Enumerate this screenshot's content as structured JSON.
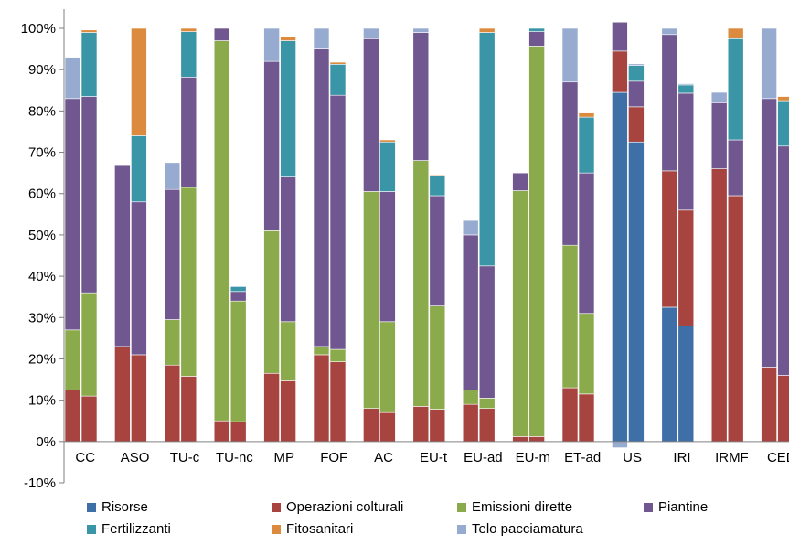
{
  "chart_data": {
    "type": "bar",
    "stacked": true,
    "ylim": [
      -0.1,
      1.0
    ],
    "yticks": [
      "-10%",
      "0%",
      "10%",
      "20%",
      "30%",
      "40%",
      "50%",
      "60%",
      "70%",
      "80%",
      "90%",
      "100%"
    ],
    "grid": false,
    "legend_position": "bottom",
    "categories": [
      "CC",
      "ASO",
      "TU-c",
      "TU-nc",
      "MP",
      "FOF",
      "AC",
      "EU-t",
      "EU-ad",
      "EU-m",
      "ET-ad",
      "US",
      "IRI",
      "IRMF",
      "CED"
    ],
    "series_order": [
      "Risorse",
      "Operazioni colturali",
      "Emissioni dirette",
      "Piantine",
      "Fertilizzanti",
      "Fitosanitari",
      "Telo pacciamatura"
    ],
    "colors": {
      "Risorse": "#3E6FA6",
      "Operazioni colturali": "#A84440",
      "Emissioni dirette": "#8AAA4B",
      "Piantine": "#70578F",
      "Fertilizzanti": "#3A95A6",
      "Fitosanitari": "#DC8A3E",
      "Telo pacciamatura": "#97AACF"
    },
    "groups": [
      {
        "category": "CC",
        "bars": [
          {
            "Risorse": 0,
            "Operazioni colturali": 12.5,
            "Emissioni dirette": 14.5,
            "Piantine": 56,
            "Fertilizzanti": 0,
            "Fitosanitari": 0,
            "Telo pacciamatura": 10
          },
          {
            "Risorse": 0,
            "Operazioni colturali": 11,
            "Emissioni dirette": 25,
            "Piantine": 47.5,
            "Fertilizzanti": 15.5,
            "Fitosanitari": 0.6,
            "Telo pacciamatura": 0
          }
        ]
      },
      {
        "category": "ASO",
        "bars": [
          {
            "Risorse": 0,
            "Operazioni colturali": 23,
            "Emissioni dirette": 0,
            "Piantine": 44,
            "Fertilizzanti": 0,
            "Fitosanitari": 0,
            "Telo pacciamatura": 0
          },
          {
            "Risorse": 0,
            "Operazioni colturali": 21,
            "Emissioni dirette": 0,
            "Piantine": 37,
            "Fertilizzanti": 16,
            "Fitosanitari": 26,
            "Telo pacciamatura": 0
          }
        ]
      },
      {
        "category": "TU-c",
        "bars": [
          {
            "Risorse": 0,
            "Operazioni colturali": 18.5,
            "Emissioni dirette": 11,
            "Piantine": 31.5,
            "Fertilizzanti": 0,
            "Fitosanitari": 0,
            "Telo pacciamatura": 6.5
          },
          {
            "Risorse": 0,
            "Operazioni colturali": 15.8,
            "Emissioni dirette": 45.7,
            "Piantine": 26.7,
            "Fertilizzanti": 11,
            "Fitosanitari": 0.8,
            "Telo pacciamatura": 0
          }
        ]
      },
      {
        "category": "TU-nc",
        "bars": [
          {
            "Risorse": 0,
            "Operazioni colturali": 5,
            "Emissioni dirette": 92,
            "Piantine": 3,
            "Fertilizzanti": 0,
            "Fitosanitari": 0,
            "Telo pacciamatura": 0
          },
          {
            "Risorse": 0,
            "Operazioni colturali": 4.8,
            "Emissioni dirette": 29.2,
            "Piantine": 2.3,
            "Fertilizzanti": 1.2,
            "Fitosanitari": 0,
            "Telo pacciamatura": 0
          }
        ]
      },
      {
        "category": "MP",
        "bars": [
          {
            "Risorse": 0,
            "Operazioni colturali": 16.5,
            "Emissioni dirette": 34.5,
            "Piantine": 41,
            "Fertilizzanti": 0,
            "Fitosanitari": 0,
            "Telo pacciamatura": 8
          },
          {
            "Risorse": 0,
            "Operazioni colturali": 14.7,
            "Emissioni dirette": 14.3,
            "Piantine": 35,
            "Fertilizzanti": 33,
            "Fitosanitari": 1,
            "Telo pacciamatura": 0
          }
        ]
      },
      {
        "category": "FOF",
        "bars": [
          {
            "Risorse": 0,
            "Operazioni colturali": 21,
            "Emissioni dirette": 2,
            "Piantine": 72,
            "Fertilizzanti": 0,
            "Fitosanitari": 0,
            "Telo pacciamatura": 5
          },
          {
            "Risorse": 0,
            "Operazioni colturali": 19.3,
            "Emissioni dirette": 3,
            "Piantine": 61.5,
            "Fertilizzanti": 7.5,
            "Fitosanitari": 0.5,
            "Telo pacciamatura": 0
          }
        ]
      },
      {
        "category": "AC",
        "bars": [
          {
            "Risorse": 0,
            "Operazioni colturali": 8,
            "Emissioni dirette": 52.5,
            "Piantine": 37,
            "Fertilizzanti": 0,
            "Fitosanitari": 0,
            "Telo pacciamatura": 2.5
          },
          {
            "Risorse": 0,
            "Operazioni colturali": 7,
            "Emissioni dirette": 22,
            "Piantine": 31.5,
            "Fertilizzanti": 12,
            "Fitosanitari": 0.5,
            "Telo pacciamatura": 0
          }
        ]
      },
      {
        "category": "EU-t",
        "bars": [
          {
            "Risorse": 0,
            "Operazioni colturali": 8.5,
            "Emissioni dirette": 59.5,
            "Piantine": 31,
            "Fertilizzanti": 0,
            "Fitosanitari": 0,
            "Telo pacciamatura": 1
          },
          {
            "Risorse": 0,
            "Operazioni colturali": 7.8,
            "Emissioni dirette": 25,
            "Piantine": 26.7,
            "Fertilizzanti": 4.8,
            "Fitosanitari": 0.2,
            "Telo pacciamatura": 0
          }
        ]
      },
      {
        "category": "EU-ad",
        "bars": [
          {
            "Risorse": 0,
            "Operazioni colturali": 9,
            "Emissioni dirette": 3.5,
            "Piantine": 37.5,
            "Fertilizzanti": 0,
            "Fitosanitari": 0,
            "Telo pacciamatura": 3.5
          },
          {
            "Risorse": 0,
            "Operazioni colturali": 8,
            "Emissioni dirette": 2.5,
            "Piantine": 32,
            "Fertilizzanti": 56.5,
            "Fitosanitari": 1,
            "Telo pacciamatura": 0
          }
        ]
      },
      {
        "category": "EU-m",
        "bars": [
          {
            "Risorse": 0,
            "Operazioni colturali": 1.2,
            "Emissioni dirette": 59.5,
            "Piantine": 4.3,
            "Fertilizzanti": 0,
            "Fitosanitari": 0,
            "Telo pacciamatura": 0
          },
          {
            "Risorse": 0,
            "Operazioni colturali": 1.2,
            "Emissioni dirette": 94.5,
            "Piantine": 3.5,
            "Fertilizzanti": 0.8,
            "Fitosanitari": 0,
            "Telo pacciamatura": 0
          }
        ]
      },
      {
        "category": "ET-ad",
        "bars": [
          {
            "Risorse": 0,
            "Operazioni colturali": 13,
            "Emissioni dirette": 34.5,
            "Piantine": 39.5,
            "Fertilizzanti": 0,
            "Fitosanitari": 0,
            "Telo pacciamatura": 13
          },
          {
            "Risorse": 0,
            "Operazioni colturali": 11.5,
            "Emissioni dirette": 19.5,
            "Piantine": 34,
            "Fertilizzanti": 13.5,
            "Fitosanitari": 1,
            "Telo pacciamatura": 0
          }
        ]
      },
      {
        "category": "US",
        "bars": [
          {
            "Risorse": 84.5,
            "Operazioni colturali": 10,
            "Emissioni dirette": 0,
            "Piantine": 7,
            "Fertilizzanti": 0,
            "Fitosanitari": 0,
            "Telo pacciamatura": -1.5
          },
          {
            "Risorse": 72.5,
            "Operazioni colturali": 8.5,
            "Emissioni dirette": 0,
            "Piantine": 6.2,
            "Fertilizzanti": 3.8,
            "Fitosanitari": 0,
            "Telo pacciamatura": 0.4
          }
        ]
      },
      {
        "category": "IRI",
        "bars": [
          {
            "Risorse": 32.5,
            "Operazioni colturali": 33,
            "Emissioni dirette": 0,
            "Piantine": 33,
            "Fertilizzanti": 0,
            "Fitosanitari": 0,
            "Telo pacciamatura": 1.5
          },
          {
            "Risorse": 28,
            "Operazioni colturali": 28,
            "Emissioni dirette": 0,
            "Piantine": 28.3,
            "Fertilizzanti": 2,
            "Fitosanitari": 0,
            "Telo pacciamatura": 0.3
          }
        ]
      },
      {
        "category": "IRMF",
        "bars": [
          {
            "Risorse": 0,
            "Operazioni colturali": 66,
            "Emissioni dirette": 0,
            "Piantine": 16,
            "Fertilizzanti": 0,
            "Fitosanitari": 0,
            "Telo pacciamatura": 2.5
          },
          {
            "Risorse": 0,
            "Operazioni colturali": 59.5,
            "Emissioni dirette": 0,
            "Piantine": 13.5,
            "Fertilizzanti": 24.5,
            "Fitosanitari": 2.5,
            "Telo pacciamatura": 0
          }
        ]
      },
      {
        "category": "CED",
        "bars": [
          {
            "Risorse": 0,
            "Operazioni colturali": 18,
            "Emissioni dirette": 0,
            "Piantine": 65,
            "Fertilizzanti": 0,
            "Fitosanitari": 0,
            "Telo pacciamatura": 17
          },
          {
            "Risorse": 0,
            "Operazioni colturali": 16,
            "Emissioni dirette": 0,
            "Piantine": 55.5,
            "Fertilizzanti": 11,
            "Fitosanitari": 1,
            "Telo pacciamatura": 0
          }
        ]
      }
    ]
  }
}
